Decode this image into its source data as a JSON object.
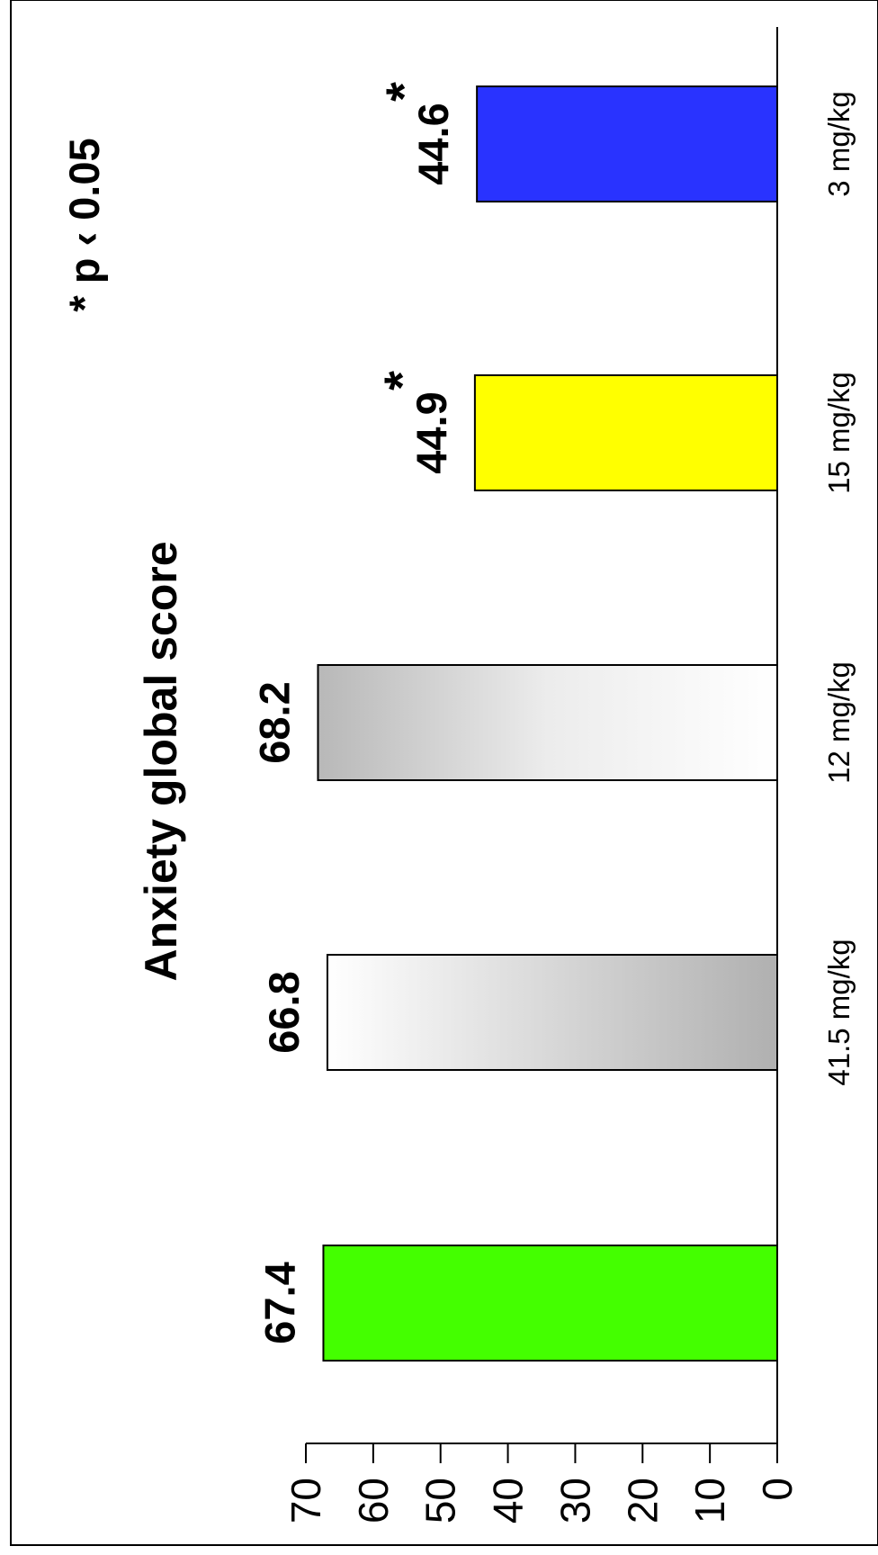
{
  "chart_data": {
    "type": "bar",
    "title": "Anxiety global score",
    "annotation": "* p ‹ 0.05",
    "categories": [
      "",
      "41.5 mg/kg",
      "12 mg/kg",
      "15 mg/kg",
      "3 mg/kg"
    ],
    "values": [
      67.4,
      66.8,
      68.2,
      44.9,
      44.6
    ],
    "value_labels": [
      "67.4",
      "66.8",
      "68.2",
      "44.9",
      "44.6"
    ],
    "significant": [
      false,
      false,
      false,
      true,
      true
    ],
    "significance_marker": "*",
    "bar_colors": [
      "#44ff00",
      "gradient-white-to-gray",
      "gradient-gray-to-white",
      "#ffff00",
      "#2933ff"
    ],
    "ylim": [
      0,
      70
    ],
    "yticks": [
      0,
      10,
      20,
      30,
      40,
      50,
      60,
      70
    ],
    "ytick_labels": [
      "0",
      "10",
      "20",
      "30",
      "40",
      "50",
      "60",
      "70"
    ],
    "xlabel": "",
    "ylabel": "",
    "grid": false,
    "orientation": "rotated-90-ccw"
  }
}
